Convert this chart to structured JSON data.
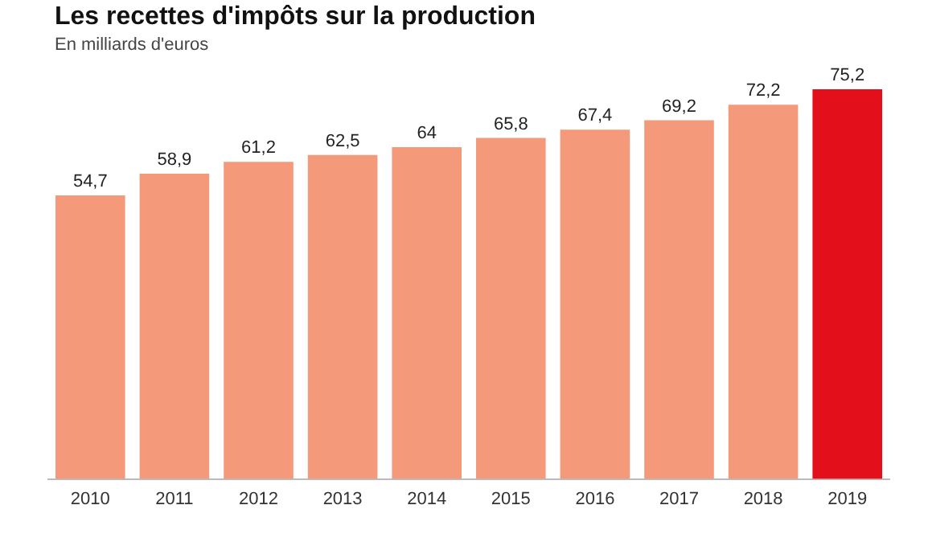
{
  "chart_data": {
    "type": "bar",
    "title": "Les recettes d'impôts sur la production",
    "subtitle": "En milliards d'euros",
    "categories": [
      "2010",
      "2011",
      "2012",
      "2013",
      "2014",
      "2015",
      "2016",
      "2017",
      "2018",
      "2019"
    ],
    "values": [
      54.7,
      58.9,
      61.2,
      62.5,
      64,
      65.8,
      67.4,
      69.2,
      72.2,
      75.2
    ],
    "value_labels": [
      "54,7",
      "58,9",
      "61,2",
      "62,5",
      "64",
      "65,8",
      "67,4",
      "69,2",
      "72,2",
      "75,2"
    ],
    "colors": [
      "#f4997a",
      "#f4997a",
      "#f4997a",
      "#f4997a",
      "#f4997a",
      "#f4997a",
      "#f4997a",
      "#f4997a",
      "#f4997a",
      "#e30f1b"
    ],
    "tick_labels": "x",
    "grid": false,
    "legend": false
  }
}
